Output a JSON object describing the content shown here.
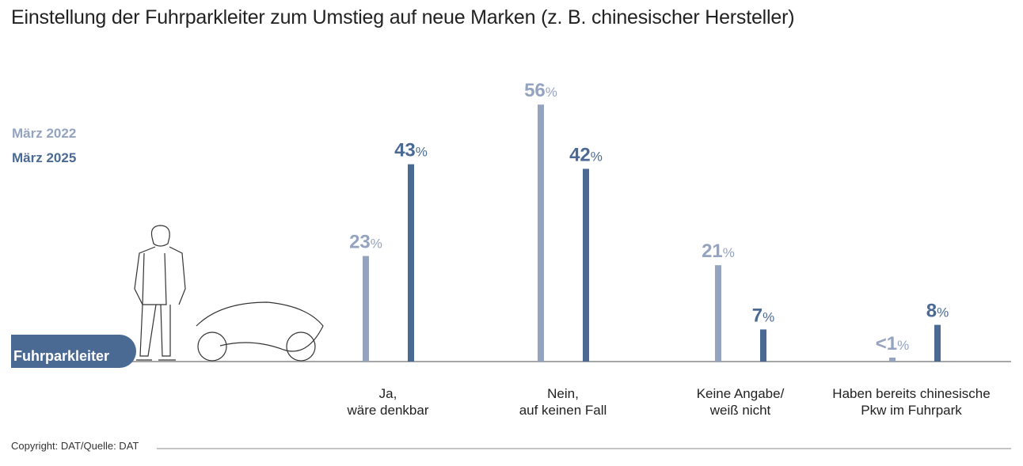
{
  "title": "Einstellung der Fuhrparkleiter zum Umstieg auf neue Marken (z. B. chinesischer Hersteller)",
  "badge": "Fuhrparkleiter",
  "copyright": "Copyright: DAT/Quelle: DAT",
  "chart_data": {
    "type": "bar",
    "title": "Einstellung der Fuhrparkleiter zum Umstieg auf neue Marken (z. B. chinesischer Hersteller)",
    "categories": [
      "Ja,\nwäre denkbar",
      "Nein,\nauf keinen Fall",
      "Keine Angabe/\nweiß nicht",
      "Haben bereits chinesische\nPkw im Fuhrpark"
    ],
    "series": [
      {
        "name": "März 2022",
        "color": "#94a3bf",
        "values": [
          23,
          56,
          21,
          0.5
        ],
        "labels": [
          "23",
          "56",
          "21",
          "<1"
        ]
      },
      {
        "name": "März 2025",
        "color": "#4a6a94",
        "values": [
          43,
          42,
          7,
          8
        ],
        "labels": [
          "43",
          "42",
          "7",
          "8"
        ]
      }
    ],
    "unit": "%",
    "ylim": [
      0,
      60
    ],
    "legend": "top-left",
    "grid": false
  }
}
